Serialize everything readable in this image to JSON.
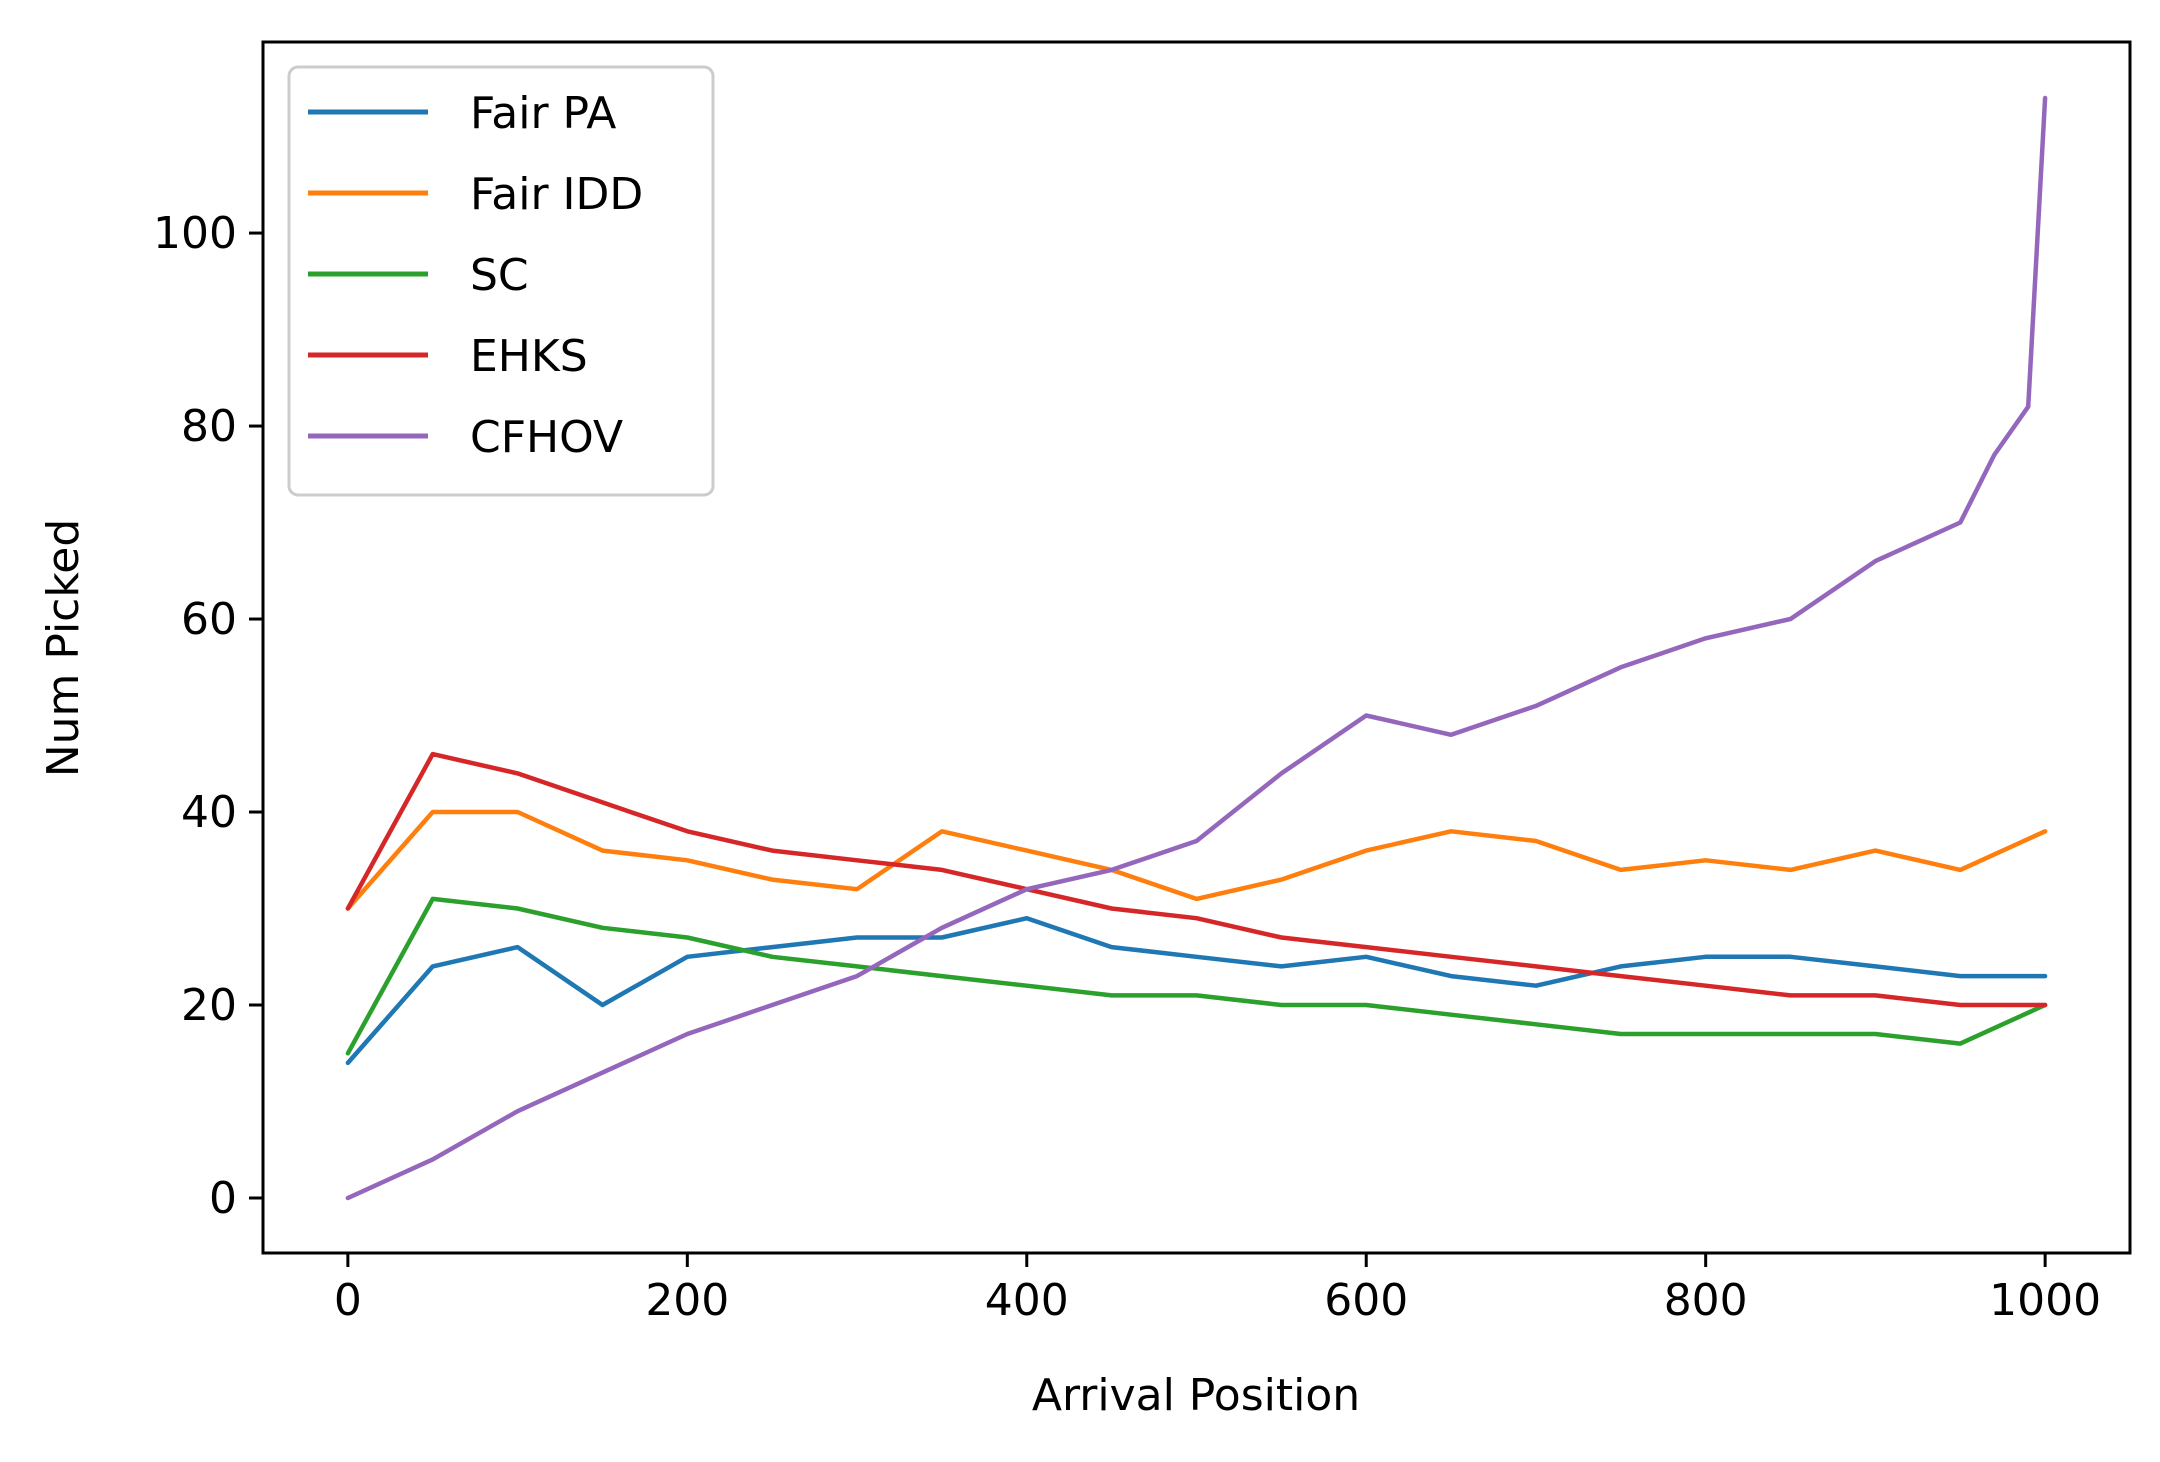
{
  "chart_data": {
    "type": "line",
    "title": "",
    "xlabel": "Arrival Position",
    "ylabel": "Num Picked",
    "xlim": [
      -50,
      1050
    ],
    "ylim": [
      -5.7,
      119.8
    ],
    "xticks": [
      0,
      200,
      400,
      600,
      800,
      1000
    ],
    "yticks": [
      0,
      20,
      40,
      60,
      80,
      100
    ],
    "grid": false,
    "legend_position": "upper left",
    "series": [
      {
        "name": "Fair PA",
        "color": "#1f77b4",
        "x": [
          0,
          50,
          100,
          150,
          200,
          250,
          300,
          350,
          400,
          450,
          500,
          550,
          600,
          650,
          700,
          750,
          800,
          850,
          900,
          950,
          1000
        ],
        "y": [
          14,
          24,
          26,
          20,
          25,
          26,
          27,
          27,
          29,
          26,
          25,
          24,
          25,
          23,
          22,
          24,
          25,
          25,
          24,
          23,
          23
        ]
      },
      {
        "name": "Fair IDD",
        "color": "#ff7f0e",
        "x": [
          0,
          50,
          100,
          150,
          200,
          250,
          300,
          350,
          400,
          450,
          500,
          550,
          600,
          650,
          700,
          750,
          800,
          850,
          900,
          950,
          1000
        ],
        "y": [
          30,
          40,
          40,
          36,
          35,
          33,
          32,
          38,
          36,
          34,
          31,
          33,
          36,
          38,
          37,
          34,
          35,
          34,
          36,
          34,
          38
        ]
      },
      {
        "name": "SC",
        "color": "#2ca02c",
        "x": [
          0,
          50,
          100,
          150,
          200,
          250,
          300,
          350,
          400,
          450,
          500,
          550,
          600,
          650,
          700,
          750,
          800,
          850,
          900,
          950,
          1000
        ],
        "y": [
          15,
          31,
          30,
          28,
          27,
          25,
          24,
          23,
          22,
          21,
          21,
          20,
          20,
          19,
          18,
          17,
          17,
          17,
          17,
          16,
          20
        ]
      },
      {
        "name": "EHKS",
        "color": "#d62728",
        "x": [
          0,
          50,
          100,
          150,
          200,
          250,
          300,
          350,
          400,
          450,
          500,
          550,
          600,
          650,
          700,
          750,
          800,
          850,
          900,
          950,
          1000
        ],
        "y": [
          30,
          46,
          44,
          41,
          38,
          36,
          35,
          34,
          32,
          30,
          29,
          27,
          26,
          25,
          24,
          23,
          22,
          21,
          21,
          20,
          20
        ]
      },
      {
        "name": "CFHOV",
        "color": "#9467bd",
        "x": [
          0,
          50,
          100,
          150,
          200,
          250,
          300,
          350,
          400,
          450,
          500,
          550,
          600,
          650,
          700,
          750,
          800,
          850,
          900,
          950,
          970,
          990,
          1000
        ],
        "y": [
          0,
          4,
          9,
          13,
          17,
          20,
          23,
          28,
          32,
          34,
          37,
          44,
          50,
          48,
          51,
          55,
          58,
          60,
          66,
          70,
          77,
          82,
          114
        ]
      }
    ]
  }
}
